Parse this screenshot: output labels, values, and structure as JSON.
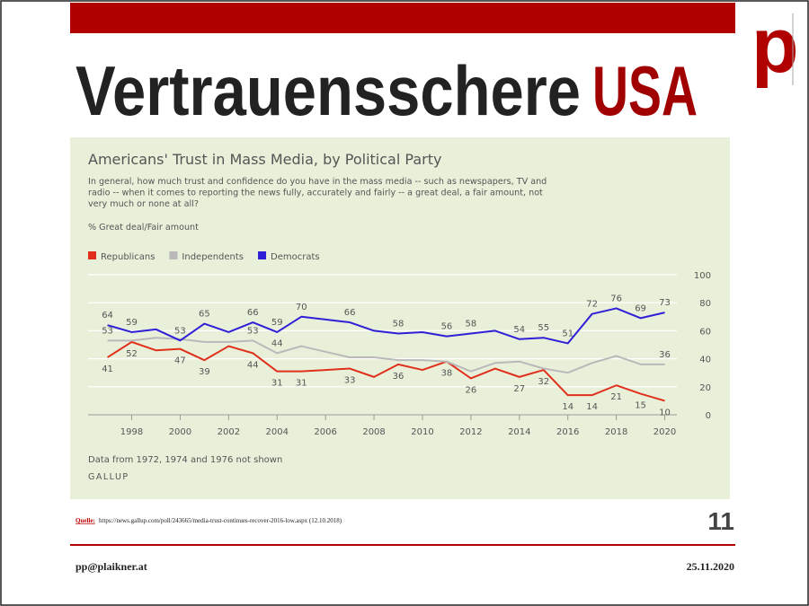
{
  "slide": {
    "title_main": "Vertrauensschere",
    "title_accent": "USA",
    "logo": "p",
    "source_label": "Quelle:",
    "source_text": "https://news.gallup.com/poll/243665/media-trust-continues-recover-2016-low.aspx  (12.10.2018)",
    "page_number": "11",
    "footer_left": "pp@plaikner.at",
    "footer_right": "25.11.2020"
  },
  "chart_data": {
    "type": "line",
    "title": "Americans' Trust in Mass Media, by Political Party",
    "subtitle": [
      "In general, how much trust and confidence do you have in the mass media -- such as newspapers, TV and",
      "radio -- when it comes to reporting the news fully, accurately and fairly -- a great deal, a fair amount, not",
      "very much or none at all?"
    ],
    "y_label": "% Great deal/Fair amount",
    "note": "Data from 1972, 1974 and 1976 not shown",
    "source": "GALLUP",
    "x": [
      1997,
      1998,
      1999,
      2000,
      2001,
      2002,
      2003,
      2004,
      2005,
      2006,
      2007,
      2008,
      2009,
      2010,
      2011,
      2012,
      2013,
      2014,
      2015,
      2016,
      2017,
      2018,
      2019,
      2020
    ],
    "series": [
      {
        "name": "Republicans",
        "color": "#e0301c",
        "values": [
          41,
          52,
          46,
          47,
          39,
          49,
          44,
          31,
          31,
          32,
          33,
          27,
          36,
          32,
          38,
          26,
          33,
          27,
          32,
          14,
          14,
          21,
          15,
          10
        ],
        "value_labels": [
          "41",
          "52",
          null,
          "47",
          "39",
          null,
          "44",
          "31",
          "31",
          null,
          "33",
          null,
          "36",
          null,
          "38",
          "26",
          null,
          "27",
          "32",
          "14",
          "14",
          "21",
          "15",
          "10"
        ]
      },
      {
        "name": "Independents",
        "color": "#b9b9b9",
        "values": [
          53,
          53,
          55,
          54,
          52,
          52,
          53,
          44,
          49,
          45,
          41,
          41,
          39,
          39,
          38,
          31,
          37,
          38,
          33,
          30,
          37,
          42,
          36,
          36
        ],
        "value_labels": [
          "53",
          null,
          null,
          null,
          null,
          null,
          "53",
          "44",
          null,
          null,
          null,
          null,
          null,
          null,
          null,
          null,
          null,
          null,
          null,
          null,
          null,
          null,
          null,
          "36"
        ]
      },
      {
        "name": "Democrats",
        "color": "#2f1fd6",
        "values": [
          64,
          59,
          61,
          53,
          65,
          59,
          66,
          59,
          70,
          68,
          66,
          60,
          58,
          59,
          56,
          58,
          60,
          54,
          55,
          51,
          72,
          76,
          69,
          73
        ],
        "value_labels": [
          "64",
          "59",
          null,
          "53",
          "65",
          null,
          "66",
          "59",
          "70",
          null,
          "66",
          null,
          "58",
          null,
          "56",
          "58",
          null,
          "54",
          "55",
          "51",
          "72",
          "76",
          "69",
          "73"
        ]
      }
    ],
    "xlim": [
      1996.2,
      2020.5
    ],
    "xticks": [
      1998,
      2000,
      2002,
      2004,
      2006,
      2008,
      2010,
      2012,
      2014,
      2016,
      2018,
      2020
    ],
    "ylim": [
      0,
      100
    ],
    "yticks": [
      0,
      20,
      40,
      60,
      80,
      100
    ],
    "grid": true,
    "legend": "top-left"
  }
}
